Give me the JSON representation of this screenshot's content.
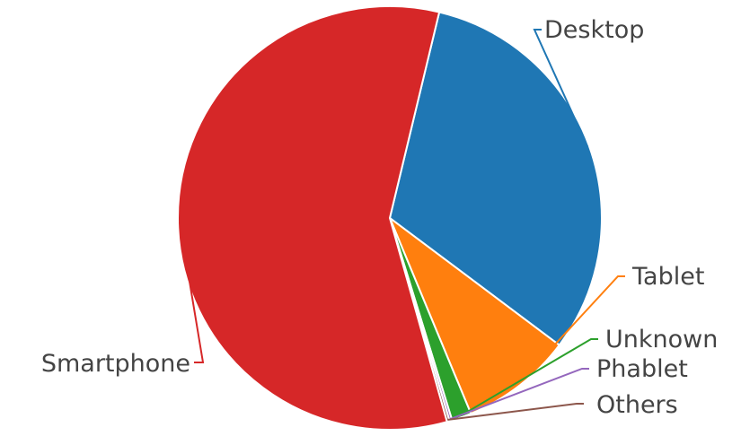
{
  "chart_data": {
    "type": "pie",
    "title": "",
    "series": [
      {
        "name": "",
        "labels": [
          "Desktop",
          "Tablet",
          "Unknown",
          "Phablet",
          "Others",
          "Smartphone"
        ],
        "values": [
          31.5,
          8.5,
          1.5,
          0.2,
          0.2,
          58.1
        ],
        "unit": "%"
      }
    ],
    "colors": {
      "Desktop": "#1f77b4",
      "Tablet": "#ff7f0e",
      "Unknown": "#2ca02c",
      "Phablet": "#9467bd",
      "Others": "#8c564b",
      "Smartphone": "#d62728"
    },
    "legend": "none",
    "labels_position": "outside"
  }
}
